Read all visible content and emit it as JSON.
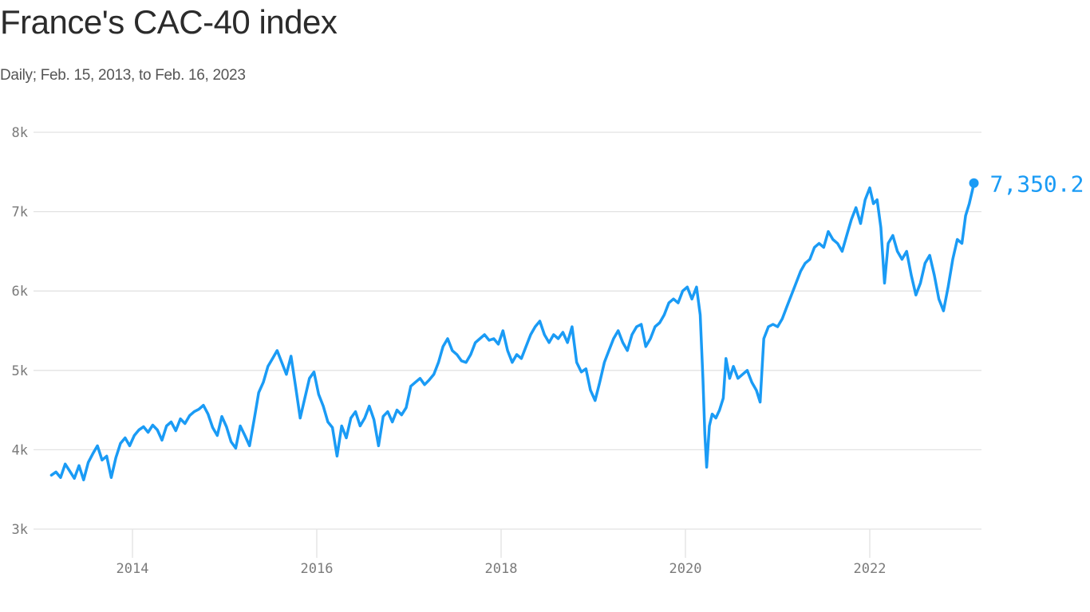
{
  "header": {
    "title": "France's CAC-40 index",
    "subtitle": "Daily; Feb. 15, 2013, to Feb. 16, 2023"
  },
  "colors": {
    "line": "#1a9bf5",
    "grid": "#e2e2e2",
    "axis_text": "#7a7a7a",
    "title": "#2b2b2b"
  },
  "chart_data": {
    "type": "line",
    "title": "France's CAC-40 index",
    "subtitle": "Daily; Feb. 15, 2013, to Feb. 16, 2023",
    "xlabel": "",
    "ylabel": "",
    "ylim": [
      3000,
      8000
    ],
    "xlim": [
      2013.12,
      2023.13
    ],
    "grid": true,
    "legend": "none",
    "y_ticks": [
      {
        "value": 3000,
        "label": "3k"
      },
      {
        "value": 4000,
        "label": "4k"
      },
      {
        "value": 5000,
        "label": "5k"
      },
      {
        "value": 6000,
        "label": "6k"
      },
      {
        "value": 7000,
        "label": "7k"
      },
      {
        "value": 8000,
        "label": "8k"
      }
    ],
    "x_ticks": [
      {
        "value": 2014,
        "label": "2014"
      },
      {
        "value": 2016,
        "label": "2016"
      },
      {
        "value": 2018,
        "label": "2018"
      },
      {
        "value": 2020,
        "label": "2020"
      },
      {
        "value": 2022,
        "label": "2022"
      }
    ],
    "end_annotation": {
      "x": 2023.13,
      "value": 7350.2,
      "label": "7,350.2"
    },
    "series": [
      {
        "name": "CAC-40",
        "points": [
          [
            2013.12,
            3680
          ],
          [
            2013.17,
            3720
          ],
          [
            2013.22,
            3650
          ],
          [
            2013.27,
            3820
          ],
          [
            2013.32,
            3730
          ],
          [
            2013.37,
            3640
          ],
          [
            2013.42,
            3800
          ],
          [
            2013.47,
            3620
          ],
          [
            2013.52,
            3840
          ],
          [
            2013.57,
            3950
          ],
          [
            2013.62,
            4050
          ],
          [
            2013.67,
            3870
          ],
          [
            2013.72,
            3920
          ],
          [
            2013.77,
            3650
          ],
          [
            2013.82,
            3900
          ],
          [
            2013.87,
            4080
          ],
          [
            2013.92,
            4150
          ],
          [
            2013.97,
            4050
          ],
          [
            2014.02,
            4180
          ],
          [
            2014.07,
            4250
          ],
          [
            2014.12,
            4290
          ],
          [
            2014.17,
            4220
          ],
          [
            2014.22,
            4310
          ],
          [
            2014.27,
            4250
          ],
          [
            2014.32,
            4120
          ],
          [
            2014.37,
            4300
          ],
          [
            2014.42,
            4350
          ],
          [
            2014.47,
            4240
          ],
          [
            2014.52,
            4390
          ],
          [
            2014.57,
            4330
          ],
          [
            2014.62,
            4430
          ],
          [
            2014.67,
            4480
          ],
          [
            2014.72,
            4510
          ],
          [
            2014.77,
            4560
          ],
          [
            2014.82,
            4450
          ],
          [
            2014.87,
            4280
          ],
          [
            2014.92,
            4180
          ],
          [
            2014.97,
            4420
          ],
          [
            2015.02,
            4290
          ],
          [
            2015.07,
            4100
          ],
          [
            2015.12,
            4020
          ],
          [
            2015.17,
            4300
          ],
          [
            2015.22,
            4180
          ],
          [
            2015.27,
            4050
          ],
          [
            2015.32,
            4380
          ],
          [
            2015.37,
            4720
          ],
          [
            2015.42,
            4850
          ],
          [
            2015.47,
            5050
          ],
          [
            2015.52,
            5150
          ],
          [
            2015.57,
            5250
          ],
          [
            2015.62,
            5100
          ],
          [
            2015.67,
            4950
          ],
          [
            2015.72,
            5180
          ],
          [
            2015.77,
            4800
          ],
          [
            2015.82,
            4400
          ],
          [
            2015.87,
            4650
          ],
          [
            2015.92,
            4900
          ],
          [
            2015.97,
            4980
          ],
          [
            2016.02,
            4700
          ],
          [
            2016.07,
            4550
          ],
          [
            2016.12,
            4350
          ],
          [
            2016.17,
            4280
          ],
          [
            2016.22,
            3920
          ],
          [
            2016.27,
            4300
          ],
          [
            2016.32,
            4150
          ],
          [
            2016.37,
            4400
          ],
          [
            2016.42,
            4480
          ],
          [
            2016.47,
            4300
          ],
          [
            2016.52,
            4400
          ],
          [
            2016.57,
            4550
          ],
          [
            2016.62,
            4380
          ],
          [
            2016.67,
            4050
          ],
          [
            2016.72,
            4420
          ],
          [
            2016.77,
            4480
          ],
          [
            2016.82,
            4350
          ],
          [
            2016.87,
            4500
          ],
          [
            2016.92,
            4440
          ],
          [
            2016.97,
            4530
          ],
          [
            2017.02,
            4800
          ],
          [
            2017.07,
            4850
          ],
          [
            2017.12,
            4900
          ],
          [
            2017.17,
            4820
          ],
          [
            2017.22,
            4880
          ],
          [
            2017.27,
            4950
          ],
          [
            2017.32,
            5100
          ],
          [
            2017.37,
            5300
          ],
          [
            2017.42,
            5400
          ],
          [
            2017.47,
            5250
          ],
          [
            2017.52,
            5200
          ],
          [
            2017.57,
            5120
          ],
          [
            2017.62,
            5100
          ],
          [
            2017.67,
            5200
          ],
          [
            2017.72,
            5350
          ],
          [
            2017.77,
            5400
          ],
          [
            2017.82,
            5450
          ],
          [
            2017.87,
            5380
          ],
          [
            2017.92,
            5400
          ],
          [
            2017.97,
            5330
          ],
          [
            2018.02,
            5500
          ],
          [
            2018.07,
            5250
          ],
          [
            2018.12,
            5100
          ],
          [
            2018.17,
            5200
          ],
          [
            2018.22,
            5150
          ],
          [
            2018.27,
            5300
          ],
          [
            2018.32,
            5450
          ],
          [
            2018.37,
            5550
          ],
          [
            2018.42,
            5620
          ],
          [
            2018.47,
            5450
          ],
          [
            2018.52,
            5350
          ],
          [
            2018.57,
            5450
          ],
          [
            2018.62,
            5400
          ],
          [
            2018.67,
            5480
          ],
          [
            2018.72,
            5350
          ],
          [
            2018.77,
            5550
          ],
          [
            2018.82,
            5100
          ],
          [
            2018.87,
            4980
          ],
          [
            2018.92,
            5020
          ],
          [
            2018.97,
            4750
          ],
          [
            2019.02,
            4620
          ],
          [
            2019.07,
            4850
          ],
          [
            2019.12,
            5100
          ],
          [
            2019.17,
            5250
          ],
          [
            2019.22,
            5400
          ],
          [
            2019.27,
            5500
          ],
          [
            2019.32,
            5350
          ],
          [
            2019.37,
            5250
          ],
          [
            2019.42,
            5450
          ],
          [
            2019.47,
            5550
          ],
          [
            2019.52,
            5580
          ],
          [
            2019.57,
            5300
          ],
          [
            2019.62,
            5400
          ],
          [
            2019.67,
            5550
          ],
          [
            2019.72,
            5600
          ],
          [
            2019.77,
            5700
          ],
          [
            2019.82,
            5850
          ],
          [
            2019.87,
            5900
          ],
          [
            2019.92,
            5850
          ],
          [
            2019.97,
            6000
          ],
          [
            2020.02,
            6050
          ],
          [
            2020.07,
            5900
          ],
          [
            2020.12,
            6050
          ],
          [
            2020.16,
            5700
          ],
          [
            2020.19,
            4900
          ],
          [
            2020.21,
            4200
          ],
          [
            2020.23,
            3780
          ],
          [
            2020.26,
            4300
          ],
          [
            2020.29,
            4450
          ],
          [
            2020.33,
            4400
          ],
          [
            2020.37,
            4500
          ],
          [
            2020.41,
            4650
          ],
          [
            2020.44,
            5150
          ],
          [
            2020.48,
            4900
          ],
          [
            2020.52,
            5050
          ],
          [
            2020.57,
            4900
          ],
          [
            2020.62,
            4950
          ],
          [
            2020.67,
            5000
          ],
          [
            2020.72,
            4850
          ],
          [
            2020.77,
            4750
          ],
          [
            2020.81,
            4600
          ],
          [
            2020.85,
            5400
          ],
          [
            2020.9,
            5550
          ],
          [
            2020.95,
            5580
          ],
          [
            2021.0,
            5550
          ],
          [
            2021.05,
            5650
          ],
          [
            2021.1,
            5800
          ],
          [
            2021.15,
            5950
          ],
          [
            2021.2,
            6100
          ],
          [
            2021.25,
            6250
          ],
          [
            2021.3,
            6350
          ],
          [
            2021.35,
            6400
          ],
          [
            2021.4,
            6550
          ],
          [
            2021.45,
            6600
          ],
          [
            2021.5,
            6550
          ],
          [
            2021.55,
            6750
          ],
          [
            2021.6,
            6650
          ],
          [
            2021.65,
            6600
          ],
          [
            2021.7,
            6500
          ],
          [
            2021.75,
            6700
          ],
          [
            2021.8,
            6900
          ],
          [
            2021.85,
            7050
          ],
          [
            2021.9,
            6850
          ],
          [
            2021.95,
            7150
          ],
          [
            2022.0,
            7300
          ],
          [
            2022.04,
            7100
          ],
          [
            2022.08,
            7150
          ],
          [
            2022.12,
            6800
          ],
          [
            2022.16,
            6100
          ],
          [
            2022.2,
            6600
          ],
          [
            2022.25,
            6700
          ],
          [
            2022.3,
            6500
          ],
          [
            2022.35,
            6400
          ],
          [
            2022.4,
            6500
          ],
          [
            2022.45,
            6200
          ],
          [
            2022.5,
            5950
          ],
          [
            2022.55,
            6100
          ],
          [
            2022.6,
            6350
          ],
          [
            2022.65,
            6450
          ],
          [
            2022.7,
            6200
          ],
          [
            2022.75,
            5900
          ],
          [
            2022.8,
            5750
          ],
          [
            2022.85,
            6050
          ],
          [
            2022.9,
            6400
          ],
          [
            2022.95,
            6650
          ],
          [
            2023.0,
            6600
          ],
          [
            2023.04,
            6950
          ],
          [
            2023.08,
            7100
          ],
          [
            2023.13,
            7350
          ]
        ]
      }
    ]
  }
}
